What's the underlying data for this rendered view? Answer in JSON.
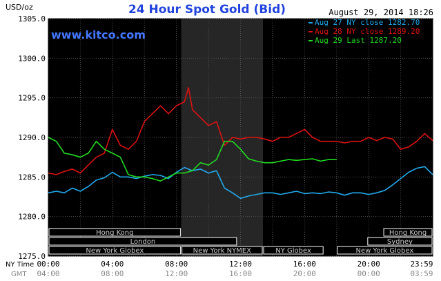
{
  "chart_data": {
    "type": "line",
    "title": "24 Hour Spot Gold (Bid)",
    "ylabel": "USD/oz",
    "timestamp": "August 29, 2014 18:26",
    "watermark": "www.kitco.com",
    "ylim": [
      1275.0,
      1305.0
    ],
    "yticks": [
      "1305.0",
      "1300.0",
      "1295.0",
      "1290.0",
      "1285.0",
      "1280.0",
      "1275.0"
    ],
    "ytick_values": [
      1305,
      1300,
      1295,
      1290,
      1285,
      1280,
      1275
    ],
    "xlim_hours": [
      0,
      24
    ],
    "xtick_hours": [
      0,
      4,
      8,
      12,
      16,
      20,
      23.983
    ],
    "xticks_ny": [
      "00:00",
      "04:00",
      "08:00",
      "12:00",
      "16:00",
      "20:00",
      "23:59"
    ],
    "xticks_gmt": [
      "04:00",
      "08:00",
      "12:00",
      "16:00",
      "20:00",
      "00:00",
      "03:59"
    ],
    "xaxis_rows": [
      "NY Time",
      "GMT"
    ],
    "shaded_period_hours": [
      8.3,
      13.4
    ],
    "colors": {
      "aug27": "#22aaee",
      "aug28": "#dd1111",
      "aug29": "#22dd22",
      "background": "#000000",
      "grid": "#505050",
      "title": "#2244dd",
      "watermark": "#4477ff",
      "session": "#ffffff",
      "session_text": "#cccccc",
      "shade": "#262626"
    },
    "series": [
      {
        "name": "Aug 27 NY close 1282.70",
        "color": "#22aaee",
        "x": [
          0,
          0.5,
          1,
          1.5,
          2,
          2.5,
          3,
          3.5,
          4,
          4.5,
          5,
          5.5,
          6,
          6.5,
          7,
          7.5,
          8,
          8.5,
          9,
          9.5,
          10,
          10.5,
          11,
          11.5,
          12,
          12.5,
          13,
          13.5,
          14,
          14.5,
          15,
          15.5,
          16,
          16.5,
          17,
          17.5,
          18,
          18.5,
          19,
          19.5,
          20,
          20.5,
          21,
          21.5,
          22,
          22.5,
          23,
          23.5,
          24
        ],
        "y": [
          1283.0,
          1283.2,
          1283.0,
          1283.6,
          1283.2,
          1283.8,
          1284.6,
          1284.9,
          1285.6,
          1285.0,
          1285.0,
          1284.8,
          1285.1,
          1285.3,
          1285.2,
          1284.8,
          1285.6,
          1286.2,
          1285.8,
          1286.0,
          1285.5,
          1285.8,
          1283.6,
          1283.0,
          1282.3,
          1282.6,
          1282.8,
          1283.0,
          1283.0,
          1282.8,
          1283.0,
          1283.2,
          1282.9,
          1283.0,
          1282.9,
          1283.1,
          1283.0,
          1282.7,
          1283.0,
          1283.0,
          1282.8,
          1283.0,
          1283.3,
          1284.0,
          1284.8,
          1285.6,
          1286.1,
          1286.3,
          1285.3
        ]
      },
      {
        "name": "Aug 28 NY close 1289.20",
        "color": "#dd1111",
        "x": [
          0,
          0.5,
          1,
          1.5,
          2,
          2.5,
          3,
          3.5,
          4,
          4.5,
          5,
          5.5,
          6,
          6.5,
          7,
          7.5,
          8,
          8.5,
          8.75,
          9,
          9.5,
          10,
          10.5,
          11,
          11.5,
          12,
          12.5,
          13,
          13.5,
          14,
          14.5,
          15,
          15.5,
          16,
          16.5,
          17,
          17.5,
          18,
          18.5,
          19,
          19.5,
          20,
          20.5,
          21,
          21.5,
          22,
          22.5,
          23,
          23.5,
          24
        ],
        "y": [
          1285.5,
          1285.3,
          1285.7,
          1286.0,
          1285.5,
          1286.5,
          1287.5,
          1288.0,
          1291.0,
          1289.0,
          1288.5,
          1289.5,
          1292.0,
          1293.0,
          1294.0,
          1293.0,
          1294.0,
          1294.5,
          1296.3,
          1293.5,
          1292.5,
          1291.5,
          1292.0,
          1289.0,
          1290.0,
          1289.8,
          1290.0,
          1290.0,
          1289.8,
          1289.5,
          1290.0,
          1290.0,
          1290.5,
          1291.0,
          1290.0,
          1289.5,
          1289.5,
          1289.5,
          1289.3,
          1289.5,
          1289.5,
          1290.0,
          1289.6,
          1290.0,
          1289.8,
          1288.5,
          1288.8,
          1289.5,
          1290.5,
          1289.6
        ]
      },
      {
        "name": "Aug 29 Last 1287.20",
        "color": "#22dd22",
        "x": [
          0,
          0.5,
          1,
          1.5,
          2,
          2.5,
          3,
          3.5,
          4,
          4.5,
          5,
          5.5,
          6,
          6.5,
          7,
          7.5,
          8,
          8.5,
          9,
          9.5,
          10,
          10.5,
          11,
          11.5,
          12,
          12.5,
          13,
          13.5,
          14,
          14.5,
          15,
          15.5,
          16,
          16.5,
          17,
          17.5,
          18
        ],
        "y": [
          1290.0,
          1289.5,
          1288.0,
          1287.8,
          1287.5,
          1288.0,
          1289.5,
          1288.5,
          1288.0,
          1287.5,
          1285.3,
          1285.0,
          1285.0,
          1284.8,
          1284.5,
          1285.0,
          1285.5,
          1285.5,
          1285.8,
          1286.8,
          1286.5,
          1287.2,
          1289.5,
          1289.5,
          1288.5,
          1287.3,
          1287.0,
          1286.8,
          1286.8,
          1287.0,
          1287.2,
          1287.1,
          1287.2,
          1287.3,
          1287.0,
          1287.2,
          1287.2
        ]
      }
    ],
    "sessions": [
      {
        "name": "Hong Kong",
        "start": 0,
        "end": 8.3,
        "row": 0
      },
      {
        "name": "London",
        "start": 0,
        "end": 11.8,
        "row": 1
      },
      {
        "name": "New York Globex",
        "start": 0,
        "end": 8.3,
        "row": 2
      },
      {
        "name": "New York NYMEX",
        "start": 8.3,
        "end": 13.4,
        "row": 2
      },
      {
        "name": "NY Globex",
        "start": 13.4,
        "end": 17.2,
        "row": 2
      },
      {
        "name": "Hong Kong",
        "start": 20.9,
        "end": 24,
        "row": 0
      },
      {
        "name": "Sydney",
        "start": 19.9,
        "end": 24,
        "row": 1
      },
      {
        "name": "New York Globex",
        "start": 18.0,
        "end": 24,
        "row": 2
      }
    ]
  }
}
